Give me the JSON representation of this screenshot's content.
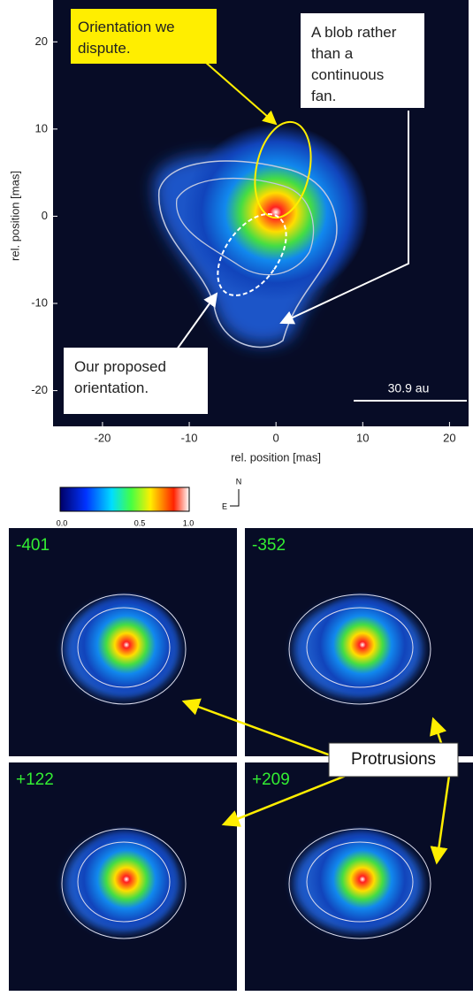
{
  "main_panel": {
    "xlabel": "rel. position [mas]",
    "ylabel": "rel. position [mas]",
    "xlim": [
      -25.7,
      22.2
    ],
    "ylim": [
      -24.1,
      24.8
    ],
    "xticks": [
      -20,
      -10,
      0,
      10,
      20
    ],
    "yticks": [
      -20,
      -10,
      0,
      10,
      20
    ],
    "annotations": {
      "dispute": "Orientation we dispute.",
      "blob": "A blob rather than a continuous fan.",
      "proposed": "Our proposed orientation."
    },
    "scale_bar": "30.9 au"
  },
  "colorbar": {
    "ticks": [
      "0.0",
      "0.5",
      "1.0"
    ]
  },
  "compass": {
    "north": "N",
    "east": "E"
  },
  "panels": [
    {
      "label": "-401"
    },
    {
      "label": "-352"
    },
    {
      "label": "+122"
    },
    {
      "label": "+209"
    }
  ],
  "callout": "Protrusions"
}
